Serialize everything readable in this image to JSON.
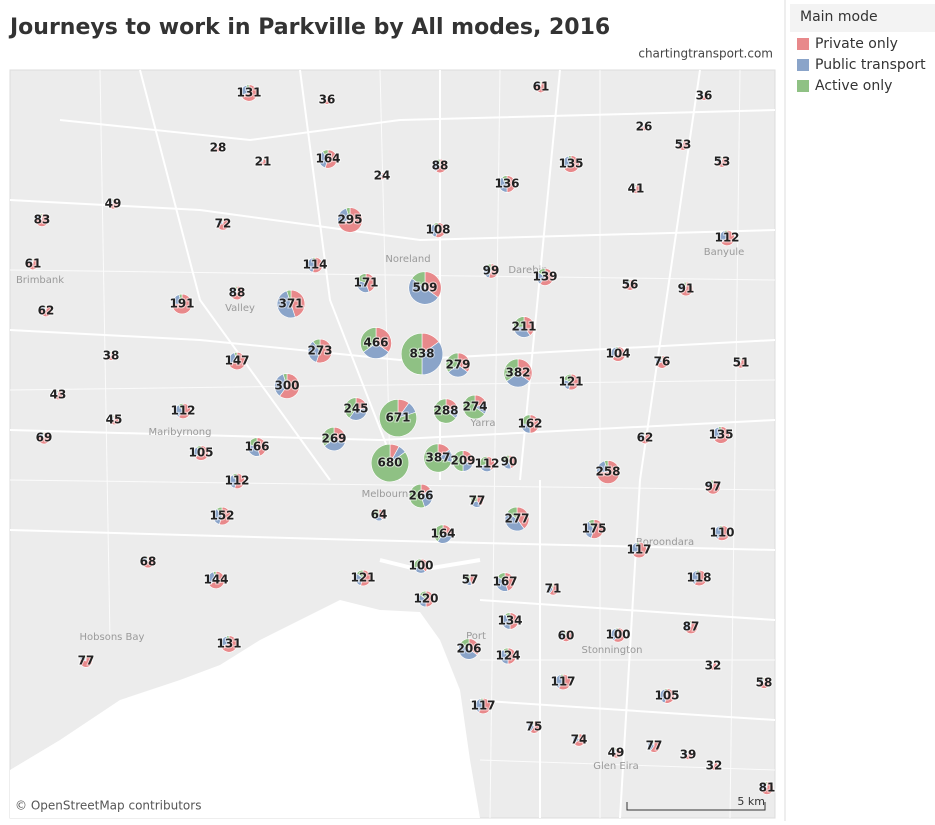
{
  "title": "Journeys to work in Parkville by All modes, 2016",
  "source": "chartingtransport.com",
  "legend": {
    "title": "Main mode",
    "items": [
      {
        "name": "Private only",
        "color": "#e8898b"
      },
      {
        "name": "Public transport",
        "color": "#8aa4c9"
      },
      {
        "name": "Active only",
        "color": "#8fc184"
      }
    ]
  },
  "map_labels": [
    "Brimbank",
    "Maribyrnong",
    "Hobsons Bay",
    "Darebin",
    "Banyule",
    "Boroondara",
    "Stonnington",
    "Glen Eira",
    "Noreland",
    "Valley",
    "Melbourne",
    "Yarra",
    "Port"
  ],
  "attribution": "© OpenStreetMap contributors",
  "scale_label": "5 km",
  "markers": [
    {
      "value": 131,
      "shares": [
        70,
        25,
        5
      ]
    },
    {
      "value": 36,
      "shares": [
        75,
        20,
        5
      ]
    },
    {
      "value": 61,
      "shares": [
        80,
        15,
        5
      ]
    },
    {
      "value": 36,
      "shares": [
        75,
        20,
        5
      ]
    },
    {
      "value": 26,
      "shares": [
        75,
        20,
        5
      ]
    },
    {
      "value": 28,
      "shares": [
        75,
        20,
        5
      ]
    },
    {
      "value": 21,
      "shares": [
        75,
        20,
        5
      ]
    },
    {
      "value": 164,
      "shares": [
        55,
        35,
        10
      ]
    },
    {
      "value": 88,
      "shares": [
        60,
        30,
        10
      ]
    },
    {
      "value": 135,
      "shares": [
        65,
        30,
        5
      ]
    },
    {
      "value": 53,
      "shares": [
        75,
        20,
        5
      ]
    },
    {
      "value": 53,
      "shares": [
        75,
        20,
        5
      ]
    },
    {
      "value": 24,
      "shares": [
        70,
        25,
        5
      ]
    },
    {
      "value": 136,
      "shares": [
        50,
        40,
        10
      ]
    },
    {
      "value": 41,
      "shares": [
        75,
        20,
        5
      ]
    },
    {
      "value": 83,
      "shares": [
        80,
        15,
        5
      ]
    },
    {
      "value": 49,
      "shares": [
        80,
        15,
        5
      ]
    },
    {
      "value": 72,
      "shares": [
        75,
        20,
        5
      ]
    },
    {
      "value": 295,
      "shares": [
        70,
        25,
        5
      ]
    },
    {
      "value": 108,
      "shares": [
        55,
        35,
        10
      ]
    },
    {
      "value": 112,
      "shares": [
        65,
        30,
        5
      ]
    },
    {
      "value": 61,
      "shares": [
        80,
        15,
        5
      ]
    },
    {
      "value": 114,
      "shares": [
        55,
        40,
        5
      ]
    },
    {
      "value": 99,
      "shares": [
        55,
        35,
        10
      ]
    },
    {
      "value": 139,
      "shares": [
        60,
        25,
        15
      ]
    },
    {
      "value": 171,
      "shares": [
        45,
        35,
        20
      ]
    },
    {
      "value": 509,
      "shares": [
        35,
        50,
        15
      ]
    },
    {
      "value": 56,
      "shares": [
        75,
        20,
        5
      ]
    },
    {
      "value": 91,
      "shares": [
        70,
        25,
        5
      ]
    },
    {
      "value": 191,
      "shares": [
        75,
        20,
        5
      ]
    },
    {
      "value": 88,
      "shares": [
        70,
        25,
        5
      ]
    },
    {
      "value": 371,
      "shares": [
        45,
        50,
        5
      ]
    },
    {
      "value": 62,
      "shares": [
        80,
        15,
        5
      ]
    },
    {
      "value": 211,
      "shares": [
        40,
        35,
        25
      ]
    },
    {
      "value": 466,
      "shares": [
        35,
        30,
        35
      ]
    },
    {
      "value": 838,
      "shares": [
        15,
        35,
        50
      ]
    },
    {
      "value": 273,
      "shares": [
        55,
        35,
        10
      ]
    },
    {
      "value": 38,
      "shares": [
        75,
        20,
        5
      ]
    },
    {
      "value": 147,
      "shares": [
        70,
        25,
        5
      ]
    },
    {
      "value": 279,
      "shares": [
        35,
        30,
        35
      ]
    },
    {
      "value": 104,
      "shares": [
        65,
        30,
        5
      ]
    },
    {
      "value": 76,
      "shares": [
        70,
        25,
        5
      ]
    },
    {
      "value": 51,
      "shares": [
        75,
        20,
        5
      ]
    },
    {
      "value": 382,
      "shares": [
        35,
        30,
        35
      ]
    },
    {
      "value": 121,
      "shares": [
        55,
        25,
        20
      ]
    },
    {
      "value": 300,
      "shares": [
        60,
        35,
        5
      ]
    },
    {
      "value": 43,
      "shares": [
        80,
        15,
        5
      ]
    },
    {
      "value": 45,
      "shares": [
        75,
        20,
        5
      ]
    },
    {
      "value": 112,
      "shares": [
        60,
        30,
        10
      ]
    },
    {
      "value": 245,
      "shares": [
        25,
        35,
        40
      ]
    },
    {
      "value": 671,
      "shares": [
        10,
        10,
        80
      ]
    },
    {
      "value": 288,
      "shares": [
        20,
        15,
        65
      ]
    },
    {
      "value": 274,
      "shares": [
        20,
        15,
        65
      ]
    },
    {
      "value": 162,
      "shares": [
        50,
        25,
        25
      ]
    },
    {
      "value": 69,
      "shares": [
        80,
        15,
        5
      ]
    },
    {
      "value": 269,
      "shares": [
        30,
        35,
        35
      ]
    },
    {
      "value": 166,
      "shares": [
        45,
        35,
        20
      ]
    },
    {
      "value": 105,
      "shares": [
        65,
        25,
        10
      ]
    },
    {
      "value": 62,
      "shares": [
        70,
        25,
        5
      ]
    },
    {
      "value": 135,
      "shares": [
        65,
        30,
        5
      ]
    },
    {
      "value": 680,
      "shares": [
        8,
        7,
        85
      ]
    },
    {
      "value": 387,
      "shares": [
        15,
        15,
        70
      ]
    },
    {
      "value": 209,
      "shares": [
        30,
        20,
        50
      ]
    },
    {
      "value": 112,
      "shares": [
        40,
        30,
        30
      ]
    },
    {
      "value": 90,
      "shares": [
        45,
        30,
        25
      ]
    },
    {
      "value": 258,
      "shares": [
        75,
        20,
        5
      ]
    },
    {
      "value": 112,
      "shares": [
        55,
        35,
        10
      ]
    },
    {
      "value": 97,
      "shares": [
        75,
        20,
        5
      ]
    },
    {
      "value": 266,
      "shares": [
        15,
        30,
        55
      ]
    },
    {
      "value": 77,
      "shares": [
        40,
        30,
        30
      ]
    },
    {
      "value": 152,
      "shares": [
        55,
        35,
        10
      ]
    },
    {
      "value": 64,
      "shares": [
        40,
        30,
        30
      ]
    },
    {
      "value": 277,
      "shares": [
        40,
        45,
        15
      ]
    },
    {
      "value": 175,
      "shares": [
        55,
        35,
        10
      ]
    },
    {
      "value": 110,
      "shares": [
        60,
        35,
        5
      ]
    },
    {
      "value": 164,
      "shares": [
        25,
        35,
        40
      ]
    },
    {
      "value": 117,
      "shares": [
        65,
        30,
        5
      ]
    },
    {
      "value": 68,
      "shares": [
        75,
        20,
        5
      ]
    },
    {
      "value": 100,
      "shares": [
        40,
        30,
        30
      ]
    },
    {
      "value": 57,
      "shares": [
        45,
        30,
        25
      ]
    },
    {
      "value": 121,
      "shares": [
        55,
        30,
        15
      ]
    },
    {
      "value": 144,
      "shares": [
        65,
        30,
        5
      ]
    },
    {
      "value": 167,
      "shares": [
        45,
        40,
        15
      ]
    },
    {
      "value": 71,
      "shares": [
        60,
        30,
        10
      ]
    },
    {
      "value": 118,
      "shares": [
        60,
        35,
        5
      ]
    },
    {
      "value": 120,
      "shares": [
        50,
        35,
        15
      ]
    },
    {
      "value": 134,
      "shares": [
        50,
        40,
        10
      ]
    },
    {
      "value": 87,
      "shares": [
        65,
        30,
        5
      ]
    },
    {
      "value": 60,
      "shares": [
        60,
        30,
        10
      ]
    },
    {
      "value": 100,
      "shares": [
        60,
        35,
        5
      ]
    },
    {
      "value": 131,
      "shares": [
        70,
        25,
        5
      ]
    },
    {
      "value": 206,
      "shares": [
        35,
        50,
        15
      ]
    },
    {
      "value": 124,
      "shares": [
        50,
        40,
        10
      ]
    },
    {
      "value": 32,
      "shares": [
        70,
        25,
        5
      ]
    },
    {
      "value": 77,
      "shares": [
        80,
        15,
        5
      ]
    },
    {
      "value": 117,
      "shares": [
        60,
        35,
        5
      ]
    },
    {
      "value": 58,
      "shares": [
        75,
        20,
        5
      ]
    },
    {
      "value": 105,
      "shares": [
        55,
        40,
        5
      ]
    },
    {
      "value": 117,
      "shares": [
        60,
        35,
        5
      ]
    },
    {
      "value": 75,
      "shares": [
        60,
        35,
        5
      ]
    },
    {
      "value": 74,
      "shares": [
        65,
        30,
        5
      ]
    },
    {
      "value": 49,
      "shares": [
        65,
        30,
        5
      ]
    },
    {
      "value": 77,
      "shares": [
        60,
        35,
        5
      ]
    },
    {
      "value": 39,
      "shares": [
        70,
        25,
        5
      ]
    },
    {
      "value": 32,
      "shares": [
        70,
        25,
        5
      ]
    },
    {
      "value": 81,
      "shares": [
        70,
        25,
        5
      ]
    }
  ]
}
